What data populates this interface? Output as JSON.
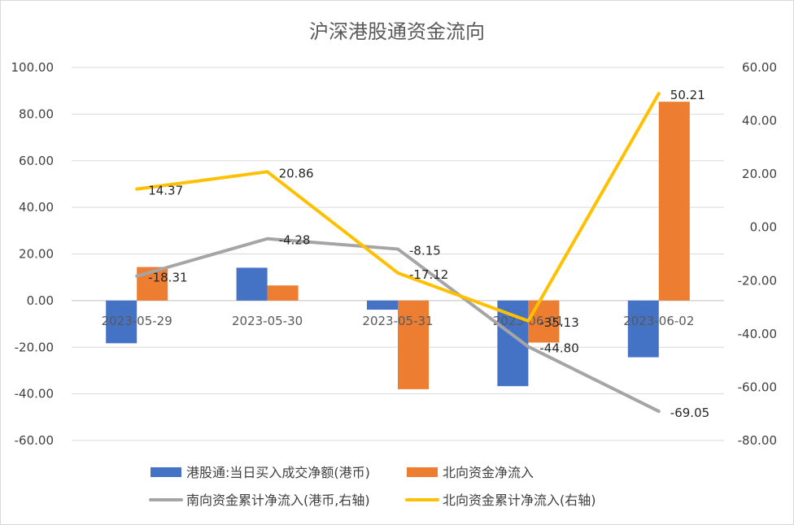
{
  "chart_data": {
    "type": "bar+line",
    "title": "沪深港股通资金流向",
    "categories": [
      "2023-05-29",
      "2023-05-30",
      "2023-05-31",
      "2023-06-01",
      "2023-06-02"
    ],
    "left_axis": {
      "min": -60,
      "max": 100,
      "step": 20,
      "tick_labels": [
        "100.00",
        "80.00",
        "60.00",
        "40.00",
        "20.00",
        "0.00",
        "-20.00",
        "-40.00",
        "-60.00"
      ]
    },
    "right_axis": {
      "min": -80,
      "max": 60,
      "step": 20,
      "tick_labels": [
        "60.00",
        "40.00",
        "20.00",
        "0.00",
        "-20.00",
        "-40.00",
        "-60.00",
        "-80.00"
      ]
    },
    "bar_series": [
      {
        "name": "港股通:当日买入成交净额(港币)",
        "color": "#4472C4",
        "axis": "left",
        "values": [
          -18.3,
          14.1,
          -3.9,
          -36.7,
          -24.3
        ]
      },
      {
        "name": "北向资金净流入",
        "color": "#ED7D31",
        "axis": "left",
        "values": [
          14.4,
          6.5,
          -38.0,
          -18.0,
          85.3
        ]
      }
    ],
    "line_series": [
      {
        "name": "南向资金累计净流入(港币,右轴)",
        "color": "#A5A5A5",
        "axis": "right",
        "values": [
          -18.31,
          -4.28,
          -8.15,
          -44.8,
          -69.05
        ],
        "labels": [
          "-18.31",
          "-4.28",
          "-8.15",
          "-44.80",
          "-69.05"
        ]
      },
      {
        "name": "北向资金累计净流入(右轴)",
        "color": "#FFC000",
        "axis": "right",
        "values": [
          14.37,
          20.86,
          -17.12,
          -35.13,
          50.21
        ],
        "labels": [
          "14.37",
          "20.86",
          "-17.12",
          "-35.13",
          "50.21"
        ]
      }
    ],
    "grid": true,
    "legend_position": "bottom"
  }
}
